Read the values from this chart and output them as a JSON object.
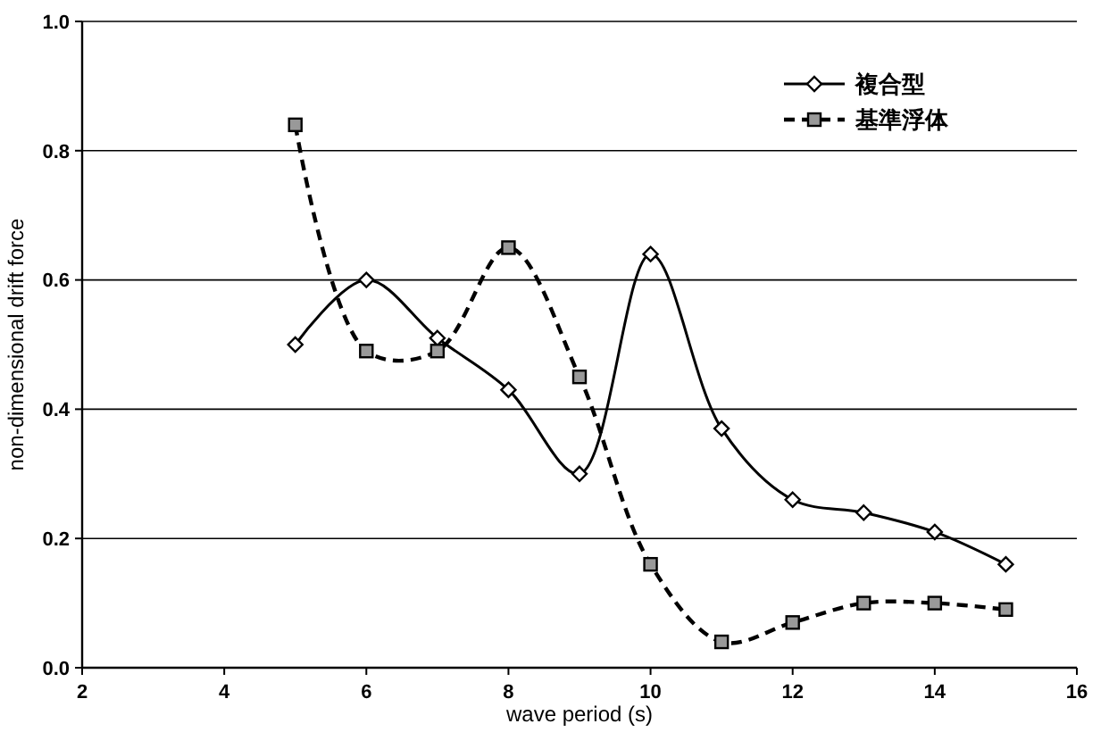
{
  "chart_data": {
    "type": "line",
    "xlabel": "wave period (s)",
    "ylabel": "non-dimensional drift force",
    "x": [
      5,
      6,
      7,
      8,
      9,
      10,
      11,
      12,
      13,
      14,
      15
    ],
    "series": [
      {
        "name": "複合型",
        "color": "#000000",
        "marker": "diamond",
        "line_style": "solid",
        "values": [
          0.5,
          0.6,
          0.51,
          0.43,
          0.3,
          0.64,
          0.37,
          0.26,
          0.24,
          0.21,
          0.16
        ]
      },
      {
        "name": "基準浮体",
        "color": "#000000",
        "marker": "square",
        "line_style": "dashed",
        "values": [
          0.84,
          0.49,
          0.49,
          0.65,
          0.45,
          0.16,
          0.04,
          0.07,
          0.1,
          0.1,
          0.09
        ]
      }
    ],
    "xlim": [
      2,
      16
    ],
    "xticks": [
      2,
      4,
      6,
      8,
      10,
      12,
      14,
      16
    ],
    "ylim": [
      0,
      1
    ],
    "yticks": [
      {
        "value": 0,
        "label": "0.0"
      },
      {
        "value": 0.2,
        "label": "0.2"
      },
      {
        "value": 0.4,
        "label": "0.4"
      },
      {
        "value": 0.6,
        "label": "0.6"
      },
      {
        "value": 0.8,
        "label": "0.8"
      },
      {
        "value": 1,
        "label": "1.0"
      }
    ],
    "grid": "y",
    "legend": "top right"
  }
}
